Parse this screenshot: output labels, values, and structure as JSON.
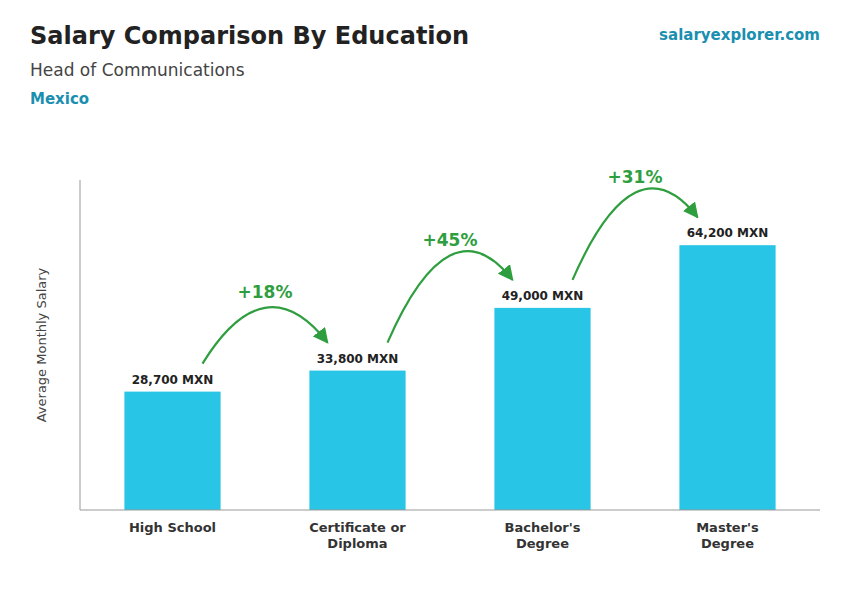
{
  "chart_data": {
    "type": "bar",
    "title": "Salary Comparison By Education",
    "subtitle": "Head of Communications",
    "categories": [
      "High School",
      "Certificate or\nDiploma",
      "Bachelor's\nDegree",
      "Master's\nDegree"
    ],
    "values": [
      28700,
      33800,
      49000,
      64200
    ],
    "value_labels": [
      "28,700 MXN",
      "33,800 MXN",
      "49,000 MXN",
      "64,200 MXN"
    ],
    "data_labels": true,
    "color": "#29c5e6",
    "ylabel": "Average Monthly Salary",
    "ylim": [
      0,
      80000
    ],
    "tick_labels": "x",
    "grid": false,
    "annotations": [
      {
        "text": "Mexico"
      },
      {
        "text": "salaryexplorer.com"
      },
      {
        "text": "+18%",
        "from": 0,
        "to": 1
      },
      {
        "text": "+45%",
        "from": 1,
        "to": 2
      },
      {
        "text": "+31%",
        "from": 2,
        "to": 3
      }
    ]
  }
}
